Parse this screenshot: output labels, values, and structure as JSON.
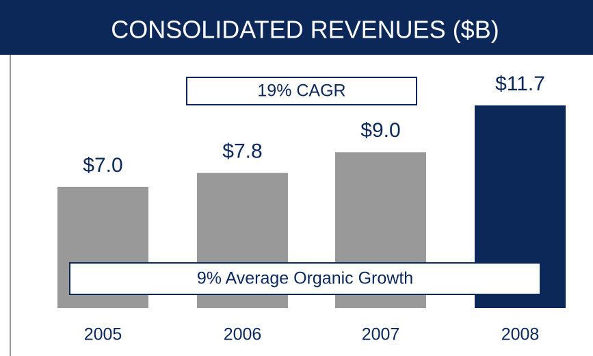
{
  "chart_data": {
    "type": "bar",
    "title": "CONSOLIDATED REVENUES ($B)",
    "categories": [
      "2005",
      "2006",
      "2007",
      "2008"
    ],
    "values": [
      7.0,
      7.8,
      9.0,
      11.7
    ],
    "value_labels": [
      "$7.0",
      "$7.8",
      "$9.0",
      "$11.7"
    ],
    "colors": [
      "#999999",
      "#999999",
      "#999999",
      "#0b2858"
    ],
    "annotations": [
      "19% CAGR",
      "9% Average Organic Growth"
    ]
  }
}
